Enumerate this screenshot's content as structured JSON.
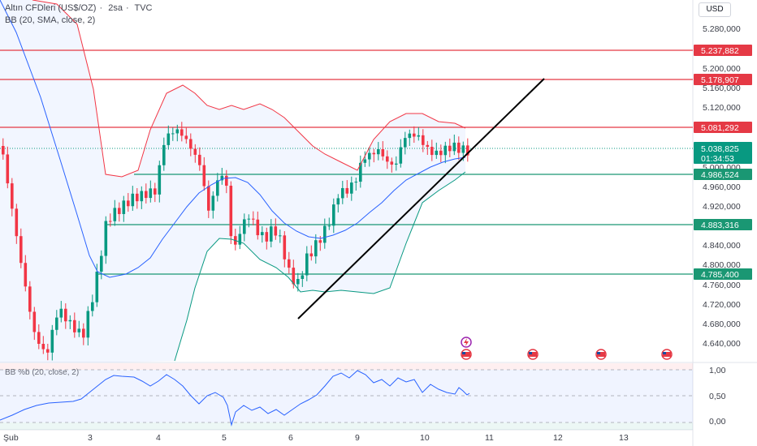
{
  "header": {
    "symbol": "Altın CFDleri (US$/OZ)",
    "interval": "2sa",
    "source": "TVC",
    "indicator": "BB (20, SMA, close, 2)",
    "oscillator": "BB %b (20, close, 2)",
    "currency": "USD"
  },
  "price_axis": {
    "ticks": [
      "5.280,000",
      "5.200,000",
      "5.160,000",
      "5.120,000",
      "5.000,000",
      "4.960,000",
      "4.920,000",
      "4.840,000",
      "4.800,000",
      "4.760,000",
      "4.720,000",
      "4.680,000",
      "4.640,000"
    ],
    "last_price": "5.038,825",
    "countdown": "01:34:53"
  },
  "levels": [
    {
      "label": "5.237,882",
      "color": "#e53945"
    },
    {
      "label": "5.178,907",
      "color": "#e53945"
    },
    {
      "label": "5.081,292",
      "color": "#e53945"
    },
    {
      "label": "4.986,524",
      "color": "#1a9773"
    },
    {
      "label": "4.883,316",
      "color": "#1a9773"
    },
    {
      "label": "4.785,400",
      "color": "#1a9773"
    }
  ],
  "osc_axis": {
    "ticks": [
      "1,00",
      "0,50",
      "0,00"
    ]
  },
  "time_axis": {
    "ticks": [
      "Şub",
      "3",
      "4",
      "5",
      "6",
      "9",
      "10",
      "11",
      "12",
      "13"
    ]
  },
  "colors": {
    "up": "#089981",
    "down": "#f23645",
    "bb_upper": "#f23645",
    "bb_lower": "#089981",
    "bb_basis": "#2962ff",
    "percent_b": "#2962ff"
  }
}
